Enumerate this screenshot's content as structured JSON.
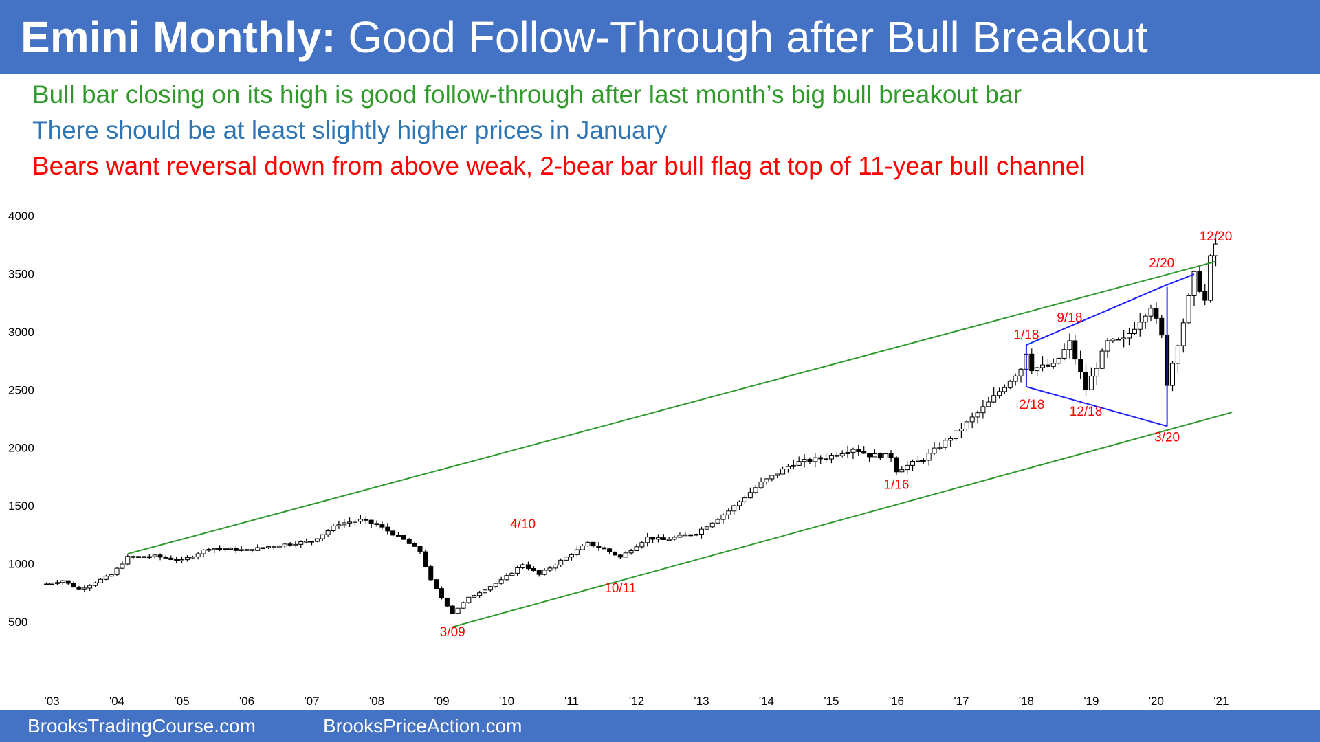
{
  "title": {
    "bold": "Emini Monthly:",
    "rest": "Good Follow-Through after Bull Breakout"
  },
  "commentary": [
    {
      "text": "Bull bar closing on its high is good follow-through after last month’s big bull breakout bar",
      "color": "#2f9a2a"
    },
    {
      "text": "There should be at least slightly higher prices in January",
      "color": "#2e75b6"
    },
    {
      "text": "Bears want reversal down from above weak, 2-bear bar bull flag at top of 11-year bull channel",
      "color": "#ff0000"
    }
  ],
  "footer": {
    "left": "BrooksTradingCourse.com",
    "right": "BrooksPriceAction.com"
  },
  "colors": {
    "banner": "#4472c4",
    "channel_lines": "#2e9a2e",
    "triangle_lines": "#1f1fff",
    "annotations": "#ff0000",
    "bull_body": "#ffffff",
    "bear_body": "#000000"
  },
  "chart_data": {
    "type": "candlestick",
    "period": "monthly",
    "ylim": [
      500,
      4000
    ],
    "y_ticks": [
      4000,
      3500,
      3000,
      2500,
      2000,
      1500,
      1000,
      500
    ],
    "x_ticks": [
      "'03",
      "'04",
      "'05",
      "'06",
      "'07",
      "'08",
      "'09",
      "'10",
      "'11",
      "'12",
      "'13",
      "'14",
      "'15",
      "'16",
      "'17",
      "'18",
      "'19",
      "'20",
      "'21"
    ],
    "x_range": [
      2002.92,
      2021.25
    ],
    "grid": false,
    "path_points": [
      {
        "date": "2002-12",
        "value": 820
      },
      {
        "date": "2003-03",
        "value": 850
      },
      {
        "date": "2003-06",
        "value": 770
      },
      {
        "date": "2003-12",
        "value": 900
      },
      {
        "date": "2004-03",
        "value": 1050
      },
      {
        "date": "2004-08",
        "value": 1060
      },
      {
        "date": "2005-01",
        "value": 1020
      },
      {
        "date": "2005-06",
        "value": 1130
      },
      {
        "date": "2006-01",
        "value": 1110
      },
      {
        "date": "2006-06",
        "value": 1150
      },
      {
        "date": "2007-01",
        "value": 1190
      },
      {
        "date": "2007-06",
        "value": 1340
      },
      {
        "date": "2007-10",
        "value": 1370
      },
      {
        "date": "2008-01",
        "value": 1330
      },
      {
        "date": "2008-06",
        "value": 1200
      },
      {
        "date": "2008-09",
        "value": 1100
      },
      {
        "date": "2008-11",
        "value": 850
      },
      {
        "date": "2009-01",
        "value": 700
      },
      {
        "date": "2009-03",
        "value": 570
      },
      {
        "date": "2009-06",
        "value": 700
      },
      {
        "date": "2009-12",
        "value": 850
      },
      {
        "date": "2010-04",
        "value": 990
      },
      {
        "date": "2010-07",
        "value": 900
      },
      {
        "date": "2010-12",
        "value": 1050
      },
      {
        "date": "2011-04",
        "value": 1170
      },
      {
        "date": "2011-07",
        "value": 1120
      },
      {
        "date": "2011-10",
        "value": 1050
      },
      {
        "date": "2012-03",
        "value": 1220
      },
      {
        "date": "2012-06",
        "value": 1200
      },
      {
        "date": "2012-12",
        "value": 1260
      },
      {
        "date": "2013-06",
        "value": 1450
      },
      {
        "date": "2013-12",
        "value": 1690
      },
      {
        "date": "2014-06",
        "value": 1860
      },
      {
        "date": "2014-12",
        "value": 1910
      },
      {
        "date": "2015-05",
        "value": 1990
      },
      {
        "date": "2015-08",
        "value": 1930
      },
      {
        "date": "2015-12",
        "value": 1920
      },
      {
        "date": "2016-01",
        "value": 1800
      },
      {
        "date": "2016-06",
        "value": 1900
      },
      {
        "date": "2016-12",
        "value": 2120
      },
      {
        "date": "2017-06",
        "value": 2380
      },
      {
        "date": "2017-12",
        "value": 2680
      },
      {
        "date": "2018-01",
        "value": 2820
      },
      {
        "date": "2018-02",
        "value": 2680
      },
      {
        "date": "2018-06",
        "value": 2700
      },
      {
        "date": "2018-09",
        "value": 2900
      },
      {
        "date": "2018-12",
        "value": 2500
      },
      {
        "date": "2019-04",
        "value": 2900
      },
      {
        "date": "2019-07",
        "value": 2920
      },
      {
        "date": "2019-12",
        "value": 3220
      },
      {
        "date": "2020-02",
        "value": 2950
      },
      {
        "date": "2020-03",
        "value": 2550
      },
      {
        "date": "2020-06",
        "value": 3080
      },
      {
        "date": "2020-08",
        "value": 3480
      },
      {
        "date": "2020-10",
        "value": 3260
      },
      {
        "date": "2020-11",
        "value": 3620
      },
      {
        "date": "2020-12",
        "value": 3750
      }
    ],
    "trendlines": [
      {
        "role": "channel-top",
        "from": {
          "date": "2004-03",
          "value": 1080
        },
        "to": {
          "date": "2020-12",
          "value": 3600
        }
      },
      {
        "role": "channel-bottom",
        "from": {
          "date": "2009-03",
          "value": 450
        },
        "to": {
          "date": "2021-03",
          "value": 2300
        }
      },
      {
        "role": "triangle-top",
        "from": {
          "date": "2018-01",
          "value": 2880
        },
        "to": {
          "date": "2020-02",
          "value": 3380
        }
      },
      {
        "role": "triangle-top-ext",
        "from": {
          "date": "2020-02",
          "value": 3380
        },
        "to": {
          "date": "2020-08",
          "value": 3490
        }
      },
      {
        "role": "triangle-bottom",
        "from": {
          "date": "2018-01",
          "value": 2520
        },
        "to": {
          "date": "2020-03",
          "value": 2180
        }
      },
      {
        "role": "triangle-left",
        "from": {
          "date": "2018-01",
          "value": 2880
        },
        "to": {
          "date": "2018-01",
          "value": 2520
        }
      },
      {
        "role": "triangle-right",
        "from": {
          "date": "2020-03",
          "value": 2180
        },
        "to": {
          "date": "2020-03",
          "value": 3380
        }
      }
    ],
    "annotations": [
      {
        "text": "12/20",
        "date": "2020-12",
        "value": 3780
      },
      {
        "text": "2/20",
        "date": "2020-02",
        "value": 3550
      },
      {
        "text": "9/18",
        "date": "2018-09",
        "value": 3080
      },
      {
        "text": "1/18",
        "date": "2018-01",
        "value": 2930
      },
      {
        "text": "2/18",
        "date": "2018-02",
        "value": 2330
      },
      {
        "text": "12/18",
        "date": "2018-12",
        "value": 2270
      },
      {
        "text": "3/20",
        "date": "2020-03",
        "value": 2050
      },
      {
        "text": "1/16",
        "date": "2016-01",
        "value": 1640
      },
      {
        "text": "4/10",
        "date": "2010-04",
        "value": 1300
      },
      {
        "text": "10/11",
        "date": "2011-10",
        "value": 750
      },
      {
        "text": "3/09",
        "date": "2009-03",
        "value": 370
      }
    ]
  }
}
